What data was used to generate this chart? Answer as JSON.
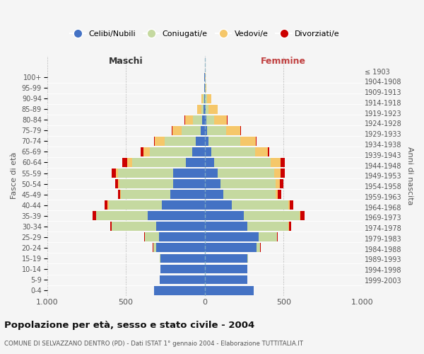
{
  "age_groups": [
    "0-4",
    "5-9",
    "10-14",
    "15-19",
    "20-24",
    "25-29",
    "30-34",
    "35-39",
    "40-44",
    "45-49",
    "50-54",
    "55-59",
    "60-64",
    "65-69",
    "70-74",
    "75-79",
    "80-84",
    "85-89",
    "90-94",
    "95-99",
    "100+"
  ],
  "birth_years": [
    "1999-2003",
    "1994-1998",
    "1989-1993",
    "1984-1988",
    "1979-1983",
    "1974-1978",
    "1969-1973",
    "1964-1968",
    "1959-1963",
    "1954-1958",
    "1949-1953",
    "1944-1948",
    "1939-1943",
    "1934-1938",
    "1929-1933",
    "1924-1928",
    "1919-1923",
    "1914-1918",
    "1909-1913",
    "1904-1908",
    "≤ 1903"
  ],
  "colors": {
    "celibi": "#4472C4",
    "coniugati": "#C5D9A0",
    "vedovi": "#F5C76A",
    "divorziati": "#CC0000"
  },
  "maschi": {
    "celibi": [
      320,
      285,
      280,
      280,
      310,
      290,
      310,
      360,
      270,
      220,
      200,
      200,
      120,
      80,
      55,
      25,
      15,
      8,
      5,
      2,
      2
    ],
    "coniugati": [
      0,
      0,
      0,
      5,
      15,
      90,
      280,
      330,
      340,
      310,
      340,
      350,
      340,
      270,
      200,
      120,
      60,
      15,
      5,
      0,
      0
    ],
    "vedovi": [
      0,
      0,
      0,
      0,
      0,
      0,
      0,
      0,
      5,
      5,
      10,
      15,
      30,
      40,
      60,
      60,
      50,
      25,
      10,
      2,
      0
    ],
    "divorziati": [
      0,
      0,
      0,
      0,
      5,
      5,
      10,
      20,
      20,
      15,
      20,
      25,
      35,
      15,
      5,
      5,
      5,
      0,
      0,
      0,
      0
    ]
  },
  "femmine": {
    "celibi": [
      310,
      270,
      270,
      270,
      330,
      340,
      270,
      250,
      170,
      120,
      100,
      80,
      60,
      40,
      25,
      15,
      10,
      5,
      3,
      2,
      2
    ],
    "coniugati": [
      0,
      0,
      0,
      5,
      20,
      120,
      260,
      350,
      360,
      330,
      350,
      360,
      360,
      280,
      200,
      120,
      50,
      20,
      10,
      2,
      0
    ],
    "vedovi": [
      0,
      0,
      0,
      0,
      0,
      0,
      5,
      5,
      10,
      15,
      25,
      40,
      60,
      80,
      100,
      90,
      80,
      55,
      30,
      8,
      2
    ],
    "divorziati": [
      0,
      0,
      0,
      0,
      5,
      5,
      15,
      30,
      20,
      20,
      25,
      30,
      30,
      10,
      5,
      5,
      5,
      0,
      0,
      0,
      0
    ]
  },
  "xlim": 1000,
  "xticklabels": [
    "1.000",
    "500",
    "0",
    "500",
    "1.000"
  ],
  "title": "Popolazione per età, sesso e stato civile - 2004",
  "subtitle": "COMUNE DI SELVAZZANO DENTRO (PD) - Dati ISTAT 1° gennaio 2004 - Elaborazione TUTTITALIA.IT",
  "ylabel_left": "Fasce di età",
  "ylabel_right": "Anni di nascita",
  "maschi_label": "Maschi",
  "femmine_label": "Femmine",
  "legend_labels": [
    "Celibi/Nubili",
    "Coniugati/e",
    "Vedovi/e",
    "Divorziati/e"
  ],
  "background_color": "#F5F5F5",
  "grid_color": "#BBBBBB"
}
